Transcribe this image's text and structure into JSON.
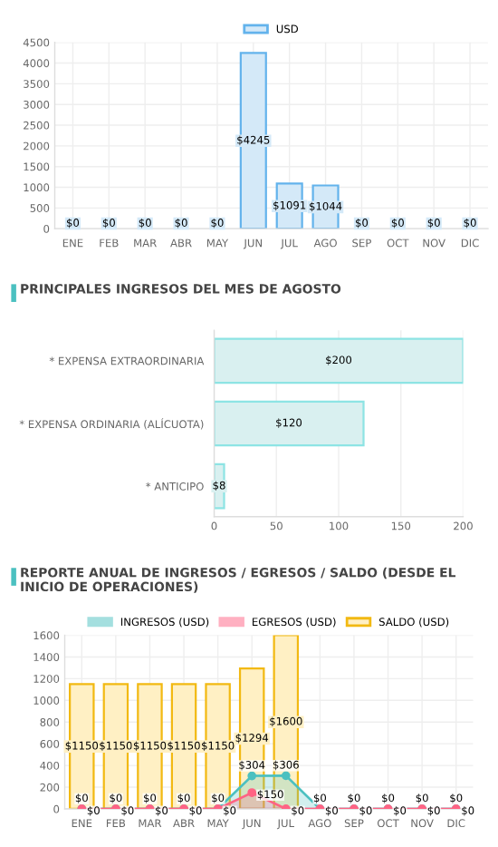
{
  "chart_data": [
    {
      "type": "bar",
      "categories": [
        "ENE",
        "FEB",
        "MAR",
        "ABR",
        "MAY",
        "JUN",
        "JUL",
        "AGO",
        "SEP",
        "OCT",
        "NOV",
        "DIC"
      ],
      "ylim": [
        0,
        4500
      ],
      "yticks": [
        0,
        500,
        1000,
        1500,
        2000,
        2500,
        3000,
        3500,
        4000,
        4500
      ],
      "grid": true,
      "legend": "top",
      "series": [
        {
          "name": "USD",
          "color": "#d4e9f8",
          "values": [
            0,
            0,
            0,
            0,
            0,
            4245,
            1091,
            1044,
            0,
            0,
            0,
            0
          ],
          "value_labels": [
            "$0",
            "$0",
            "$0",
            "$0",
            "$0",
            "$4245",
            "$1091",
            "$1044",
            "$0",
            "$0",
            "$0",
            "$0"
          ]
        }
      ]
    },
    {
      "type": "bar",
      "orientation": "horizontal",
      "title": "PRINCIPALES INGRESOS DEL MES DE AGOSTO",
      "categories": [
        "* EXPENSA EXTRAORDINARIA",
        "* EXPENSA ORDINARIA (ALÍCUOTA)",
        "* ANTICIPO"
      ],
      "xlim": [
        0,
        200
      ],
      "xticks": [
        0,
        50,
        100,
        150,
        200
      ],
      "grid": "x",
      "series": [
        {
          "color": "#d9f0f0",
          "values": [
            200,
            120,
            8
          ],
          "value_labels": [
            "$200",
            "$120",
            "$8"
          ]
        }
      ]
    },
    {
      "type": "bar",
      "title": "REPORTE ANUAL DE INGRESOS / EGRESOS / SALDO (DESDE EL INICIO DE OPERACIONES)",
      "categories": [
        "ENE",
        "FEB",
        "MAR",
        "ABR",
        "MAY",
        "JUN",
        "JUL",
        "AGO",
        "SEP",
        "OCT",
        "NOV",
        "DIC"
      ],
      "ylim": [
        0,
        1600
      ],
      "yticks": [
        0,
        200,
        400,
        600,
        800,
        1000,
        1200,
        1400,
        1600
      ],
      "grid": true,
      "legend": "top",
      "marker": "circle",
      "series": [
        {
          "name": "INGRESOS (USD)",
          "type": "area",
          "color": "#4bc0c0",
          "values": [
            0,
            0,
            0,
            0,
            0,
            304,
            306,
            0,
            0,
            0,
            0,
            0
          ],
          "value_labels": [
            "$0",
            "$0",
            "$0",
            "$0",
            "$0",
            "$304",
            "$306",
            "$0",
            "$0",
            "$0",
            "$0",
            "$0"
          ]
        },
        {
          "name": "EGRESOS (USD)",
          "type": "area",
          "color": "#ff6384",
          "values": [
            0,
            0,
            0,
            0,
            0,
            150,
            0,
            0,
            0,
            0,
            0,
            0
          ],
          "value_labels": [
            "$0",
            "$0",
            "$0",
            "$0",
            "$0",
            "$150",
            "$0",
            "$0",
            "$0",
            "$0",
            "$0",
            "$0"
          ]
        },
        {
          "name": "SALDO (USD)",
          "type": "bar",
          "color": "#fff0c4",
          "values": [
            1150,
            1150,
            1150,
            1150,
            1150,
            1294,
            1600,
            null,
            null,
            null,
            null,
            null
          ],
          "value_labels": [
            "$1150",
            "$1150",
            "$1150",
            "$1150",
            "$1150",
            "$1294",
            "$1600",
            null,
            null,
            null,
            null,
            null
          ]
        }
      ]
    }
  ]
}
